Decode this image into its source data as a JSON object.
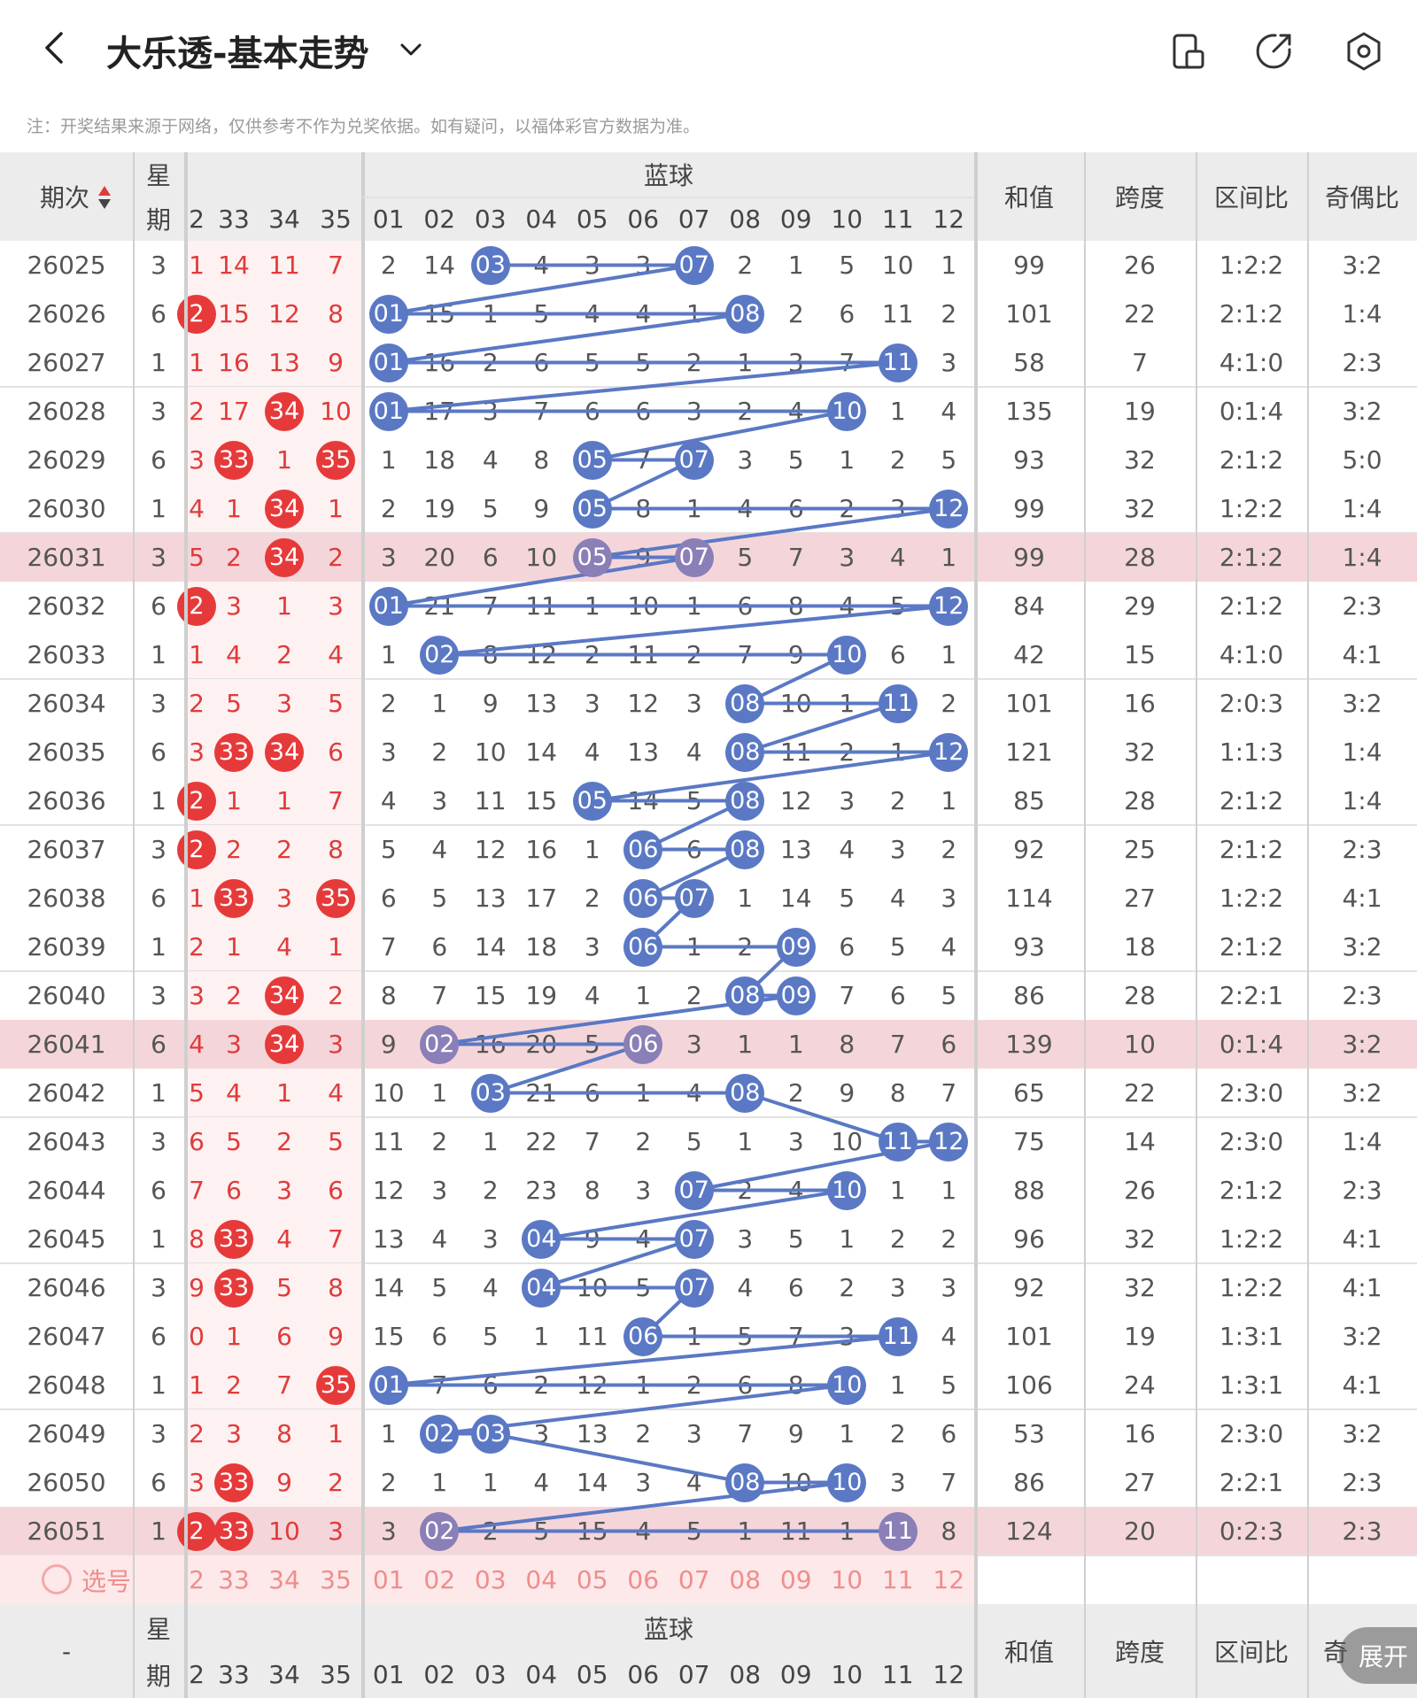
{
  "header": {
    "title": "大乐透-基本走势",
    "notice": "注：开奖结果来源于网络，仅供参考不作为兑奖依据。如有疑问，以福体彩官方数据为准。"
  },
  "table": {
    "col_period": "期次",
    "col_week": "星期",
    "col_week_a": "星",
    "col_week_b": "期",
    "blue_label": "蓝球",
    "col_sum": "和值",
    "col_span": "跨度",
    "col_zone": "区间比",
    "col_oddeven": "奇偶比",
    "red_tail_cols": [
      "2",
      "33",
      "34",
      "35"
    ],
    "blue_cols": [
      "01",
      "02",
      "03",
      "04",
      "05",
      "06",
      "07",
      "08",
      "09",
      "10",
      "11",
      "12"
    ],
    "select_label": "选号",
    "footer_period": "-",
    "footer_oddeven_partial": "奇",
    "rows": [
      {
        "period": "26025",
        "week": "3",
        "red": [
          "1",
          "14",
          "11",
          "7"
        ],
        "redhit": [],
        "blue": [
          "2",
          "14",
          "03",
          "4",
          "3",
          "3",
          "07",
          "2",
          "1",
          "5",
          "10",
          "1"
        ],
        "bluehit": [
          2,
          6
        ],
        "sum": "99",
        "span": "26",
        "zone": "1:2:2",
        "oe": "3:2",
        "hl": false
      },
      {
        "period": "26026",
        "week": "6",
        "red": [
          "2",
          "15",
          "12",
          "8"
        ],
        "redhit": [
          0
        ],
        "blue": [
          "01",
          "15",
          "1",
          "5",
          "4",
          "4",
          "1",
          "08",
          "2",
          "6",
          "11",
          "2"
        ],
        "bluehit": [
          0,
          7
        ],
        "sum": "101",
        "span": "22",
        "zone": "2:1:2",
        "oe": "1:4",
        "hl": false
      },
      {
        "period": "26027",
        "week": "1",
        "red": [
          "1",
          "16",
          "13",
          "9"
        ],
        "redhit": [],
        "blue": [
          "01",
          "16",
          "2",
          "6",
          "5",
          "5",
          "2",
          "1",
          "3",
          "7",
          "11",
          "3"
        ],
        "bluehit": [
          0,
          10
        ],
        "sum": "58",
        "span": "7",
        "zone": "4:1:0",
        "oe": "2:3",
        "hl": false
      },
      {
        "period": "26028",
        "week": "3",
        "red": [
          "2",
          "17",
          "34",
          "10"
        ],
        "redhit": [
          2
        ],
        "blue": [
          "01",
          "17",
          "3",
          "7",
          "6",
          "6",
          "3",
          "2",
          "4",
          "10",
          "1",
          "4"
        ],
        "bluehit": [
          0,
          9
        ],
        "sum": "135",
        "span": "19",
        "zone": "0:1:4",
        "oe": "3:2",
        "hl": false
      },
      {
        "period": "26029",
        "week": "6",
        "red": [
          "3",
          "33",
          "1",
          "35"
        ],
        "redhit": [
          1,
          3
        ],
        "blue": [
          "1",
          "18",
          "4",
          "8",
          "05",
          "7",
          "07",
          "3",
          "5",
          "1",
          "2",
          "5"
        ],
        "bluehit": [
          4,
          6
        ],
        "sum": "93",
        "span": "32",
        "zone": "2:1:2",
        "oe": "5:0",
        "hl": false
      },
      {
        "period": "26030",
        "week": "1",
        "red": [
          "4",
          "1",
          "34",
          "1"
        ],
        "redhit": [
          2
        ],
        "blue": [
          "2",
          "19",
          "5",
          "9",
          "05",
          "8",
          "1",
          "4",
          "6",
          "2",
          "3",
          "12"
        ],
        "bluehit": [
          4,
          11
        ],
        "sum": "99",
        "span": "32",
        "zone": "1:2:2",
        "oe": "1:4",
        "hl": false
      },
      {
        "period": "26031",
        "week": "3",
        "red": [
          "5",
          "2",
          "34",
          "2"
        ],
        "redhit": [
          2
        ],
        "blue": [
          "3",
          "20",
          "6",
          "10",
          "05",
          "9",
          "07",
          "5",
          "7",
          "3",
          "4",
          "1"
        ],
        "bluehit": [
          4,
          6
        ],
        "sum": "99",
        "span": "28",
        "zone": "2:1:2",
        "oe": "1:4",
        "hl": true
      },
      {
        "period": "26032",
        "week": "6",
        "red": [
          "2",
          "3",
          "1",
          "3"
        ],
        "redhit": [
          0
        ],
        "blue": [
          "01",
          "21",
          "7",
          "11",
          "1",
          "10",
          "1",
          "6",
          "8",
          "4",
          "5",
          "12"
        ],
        "bluehit": [
          0,
          11
        ],
        "sum": "84",
        "span": "29",
        "zone": "2:1:2",
        "oe": "2:3",
        "hl": false
      },
      {
        "period": "26033",
        "week": "1",
        "red": [
          "1",
          "4",
          "2",
          "4"
        ],
        "redhit": [],
        "blue": [
          "1",
          "02",
          "8",
          "12",
          "2",
          "11",
          "2",
          "7",
          "9",
          "10",
          "6",
          "1"
        ],
        "bluehit": [
          1,
          9
        ],
        "sum": "42",
        "span": "15",
        "zone": "4:1:0",
        "oe": "4:1",
        "hl": false
      },
      {
        "period": "26034",
        "week": "3",
        "red": [
          "2",
          "5",
          "3",
          "5"
        ],
        "redhit": [],
        "blue": [
          "2",
          "1",
          "9",
          "13",
          "3",
          "12",
          "3",
          "08",
          "10",
          "1",
          "11",
          "2"
        ],
        "bluehit": [
          7,
          10
        ],
        "sum": "101",
        "span": "16",
        "zone": "2:0:3",
        "oe": "3:2",
        "hl": false
      },
      {
        "period": "26035",
        "week": "6",
        "red": [
          "3",
          "33",
          "34",
          "6"
        ],
        "redhit": [
          1,
          2
        ],
        "blue": [
          "3",
          "2",
          "10",
          "14",
          "4",
          "13",
          "4",
          "08",
          "11",
          "2",
          "1",
          "12"
        ],
        "bluehit": [
          7,
          11
        ],
        "sum": "121",
        "span": "32",
        "zone": "1:1:3",
        "oe": "1:4",
        "hl": false
      },
      {
        "period": "26036",
        "week": "1",
        "red": [
          "2",
          "1",
          "1",
          "7"
        ],
        "redhit": [
          0
        ],
        "blue": [
          "4",
          "3",
          "11",
          "15",
          "05",
          "14",
          "5",
          "08",
          "12",
          "3",
          "2",
          "1"
        ],
        "bluehit": [
          4,
          7
        ],
        "sum": "85",
        "span": "28",
        "zone": "2:1:2",
        "oe": "1:4",
        "hl": false
      },
      {
        "period": "26037",
        "week": "3",
        "red": [
          "2",
          "2",
          "2",
          "8"
        ],
        "redhit": [
          0
        ],
        "blue": [
          "5",
          "4",
          "12",
          "16",
          "1",
          "06",
          "6",
          "08",
          "13",
          "4",
          "3",
          "2"
        ],
        "bluehit": [
          5,
          7
        ],
        "sum": "92",
        "span": "25",
        "zone": "2:1:2",
        "oe": "2:3",
        "hl": false
      },
      {
        "period": "26038",
        "week": "6",
        "red": [
          "1",
          "33",
          "3",
          "35"
        ],
        "redhit": [
          1,
          3
        ],
        "blue": [
          "6",
          "5",
          "13",
          "17",
          "2",
          "06",
          "07",
          "1",
          "14",
          "5",
          "4",
          "3"
        ],
        "bluehit": [
          5,
          6
        ],
        "sum": "114",
        "span": "27",
        "zone": "1:2:2",
        "oe": "4:1",
        "hl": false
      },
      {
        "period": "26039",
        "week": "1",
        "red": [
          "2",
          "1",
          "4",
          "1"
        ],
        "redhit": [],
        "blue": [
          "7",
          "6",
          "14",
          "18",
          "3",
          "06",
          "1",
          "2",
          "09",
          "6",
          "5",
          "4"
        ],
        "bluehit": [
          5,
          8
        ],
        "sum": "93",
        "span": "18",
        "zone": "2:1:2",
        "oe": "3:2",
        "hl": false
      },
      {
        "period": "26040",
        "week": "3",
        "red": [
          "3",
          "2",
          "34",
          "2"
        ],
        "redhit": [
          2
        ],
        "blue": [
          "8",
          "7",
          "15",
          "19",
          "4",
          "1",
          "2",
          "08",
          "09",
          "7",
          "6",
          "5"
        ],
        "bluehit": [
          7,
          8
        ],
        "sum": "86",
        "span": "28",
        "zone": "2:2:1",
        "oe": "2:3",
        "hl": false
      },
      {
        "period": "26041",
        "week": "6",
        "red": [
          "4",
          "3",
          "34",
          "3"
        ],
        "redhit": [
          2
        ],
        "blue": [
          "9",
          "02",
          "16",
          "20",
          "5",
          "06",
          "3",
          "1",
          "1",
          "8",
          "7",
          "6"
        ],
        "bluehit": [
          1,
          5
        ],
        "sum": "139",
        "span": "10",
        "zone": "0:1:4",
        "oe": "3:2",
        "hl": true
      },
      {
        "period": "26042",
        "week": "1",
        "red": [
          "5",
          "4",
          "1",
          "4"
        ],
        "redhit": [],
        "blue": [
          "10",
          "1",
          "03",
          "21",
          "6",
          "1",
          "4",
          "08",
          "2",
          "9",
          "8",
          "7"
        ],
        "bluehit": [
          2,
          7
        ],
        "sum": "65",
        "span": "22",
        "zone": "2:3:0",
        "oe": "3:2",
        "hl": false
      },
      {
        "period": "26043",
        "week": "3",
        "red": [
          "6",
          "5",
          "2",
          "5"
        ],
        "redhit": [],
        "blue": [
          "11",
          "2",
          "1",
          "22",
          "7",
          "2",
          "5",
          "1",
          "3",
          "10",
          "11",
          "12"
        ],
        "bluehit": [
          10,
          11
        ],
        "sum": "75",
        "span": "14",
        "zone": "2:3:0",
        "oe": "1:4",
        "hl": false
      },
      {
        "period": "26044",
        "week": "6",
        "red": [
          "7",
          "6",
          "3",
          "6"
        ],
        "redhit": [],
        "blue": [
          "12",
          "3",
          "2",
          "23",
          "8",
          "3",
          "07",
          "2",
          "4",
          "10",
          "1",
          "1"
        ],
        "bluehit": [
          6,
          9
        ],
        "sum": "88",
        "span": "26",
        "zone": "2:1:2",
        "oe": "2:3",
        "hl": false
      },
      {
        "period": "26045",
        "week": "1",
        "red": [
          "8",
          "33",
          "4",
          "7"
        ],
        "redhit": [
          1
        ],
        "blue": [
          "13",
          "4",
          "3",
          "04",
          "9",
          "4",
          "07",
          "3",
          "5",
          "1",
          "2",
          "2"
        ],
        "bluehit": [
          3,
          6
        ],
        "sum": "96",
        "span": "32",
        "zone": "1:2:2",
        "oe": "4:1",
        "hl": false
      },
      {
        "period": "26046",
        "week": "3",
        "red": [
          "9",
          "33",
          "5",
          "8"
        ],
        "redhit": [
          1
        ],
        "blue": [
          "14",
          "5",
          "4",
          "04",
          "10",
          "5",
          "07",
          "4",
          "6",
          "2",
          "3",
          "3"
        ],
        "bluehit": [
          3,
          6
        ],
        "sum": "92",
        "span": "32",
        "zone": "1:2:2",
        "oe": "4:1",
        "hl": false
      },
      {
        "period": "26047",
        "week": "6",
        "red": [
          "0",
          "1",
          "6",
          "9"
        ],
        "redhit": [],
        "blue": [
          "15",
          "6",
          "5",
          "1",
          "11",
          "06",
          "1",
          "5",
          "7",
          "3",
          "11",
          "4"
        ],
        "bluehit": [
          5,
          10
        ],
        "sum": "101",
        "span": "19",
        "zone": "1:3:1",
        "oe": "3:2",
        "hl": false
      },
      {
        "period": "26048",
        "week": "1",
        "red": [
          "1",
          "2",
          "7",
          "35"
        ],
        "redhit": [
          3
        ],
        "blue": [
          "01",
          "7",
          "6",
          "2",
          "12",
          "1",
          "2",
          "6",
          "8",
          "10",
          "1",
          "5"
        ],
        "bluehit": [
          0,
          9
        ],
        "sum": "106",
        "span": "24",
        "zone": "1:3:1",
        "oe": "4:1",
        "hl": false
      },
      {
        "period": "26049",
        "week": "3",
        "red": [
          "2",
          "3",
          "8",
          "1"
        ],
        "redhit": [],
        "blue": [
          "1",
          "02",
          "03",
          "3",
          "13",
          "2",
          "3",
          "7",
          "9",
          "1",
          "2",
          "6"
        ],
        "bluehit": [
          1,
          2
        ],
        "sum": "53",
        "span": "16",
        "zone": "2:3:0",
        "oe": "3:2",
        "hl": false
      },
      {
        "period": "26050",
        "week": "6",
        "red": [
          "3",
          "33",
          "9",
          "2"
        ],
        "redhit": [
          1
        ],
        "blue": [
          "2",
          "1",
          "1",
          "4",
          "14",
          "3",
          "4",
          "08",
          "10",
          "10",
          "3",
          "7"
        ],
        "bluehit": [
          7,
          9
        ],
        "sum": "86",
        "span": "27",
        "zone": "2:2:1",
        "oe": "2:3",
        "hl": false
      },
      {
        "period": "26051",
        "week": "1",
        "red": [
          "2",
          "33",
          "10",
          "3"
        ],
        "redhit": [
          0,
          1
        ],
        "blue": [
          "3",
          "02",
          "2",
          "5",
          "15",
          "4",
          "5",
          "1",
          "11",
          "1",
          "11",
          "8"
        ],
        "bluehit": [
          1,
          10
        ],
        "sum": "124",
        "span": "20",
        "zone": "0:2:3",
        "oe": "2:3",
        "hl": true
      }
    ]
  },
  "expand_label": "展开",
  "colors": {
    "red": "#e63a3a",
    "blue": "#5a78c4",
    "highlight_row": "#f4d6da",
    "trend_line": "#5a78c4"
  }
}
